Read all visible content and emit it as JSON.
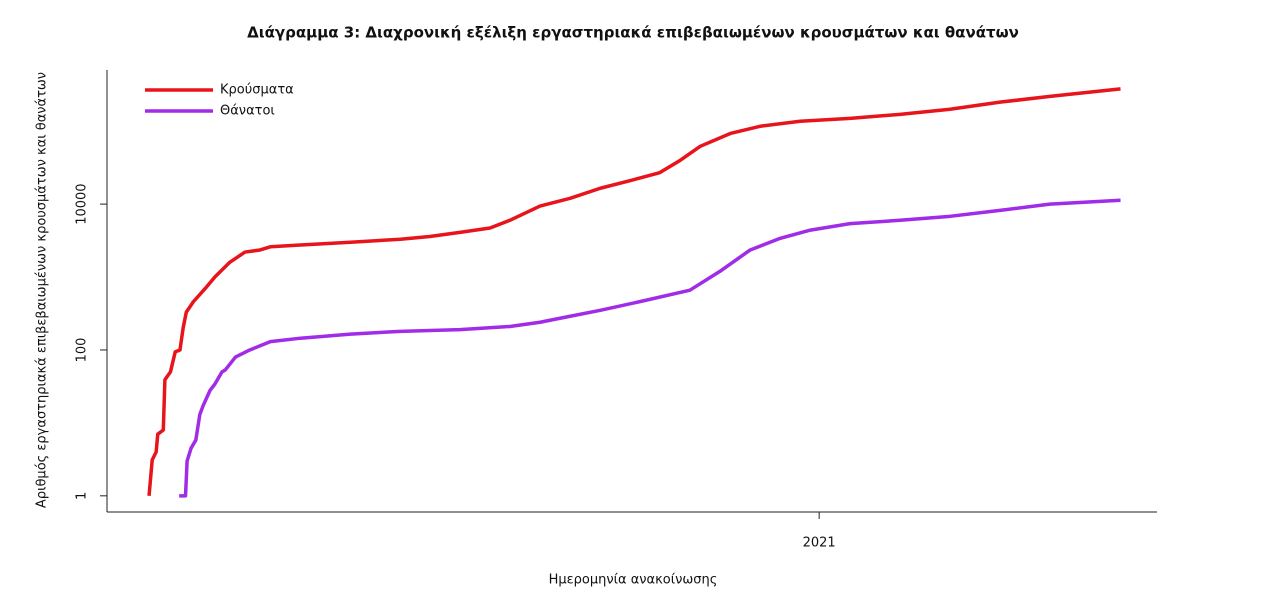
{
  "chart_data": {
    "type": "line",
    "title": "Διάγραμμα 3: Διαχρονική εξέλιξη εργαστηριακά επιβεβαιωμένων κρουσμάτων και θανάτων",
    "x_label": "Ημερομηνία ανακοίνωσης",
    "y_label": "Αριθμός εργαστηριακά επιβεβαιωμένων κρουσμάτων και θανάτων",
    "log_y": true,
    "legend": "topleft",
    "xlim": [
      2020.102,
      2021.426
    ],
    "xticks": [
      2021
    ],
    "ylim": [
      0.6,
      690000
    ],
    "yticks": [
      1,
      100,
      10000
    ],
    "series": [
      {
        "name": "Κρούσματα",
        "color": "#e8141c",
        "x": [
          2020.155,
          2020.159,
          2020.164,
          2020.166,
          2020.173,
          2020.175,
          2020.182,
          2020.188,
          2020.194,
          2020.198,
          2020.202,
          2020.211,
          2020.226,
          2020.238,
          2020.257,
          2020.276,
          2020.295,
          2020.308,
          2020.346,
          2020.409,
          2020.472,
          2020.509,
          2020.547,
          2020.585,
          2020.61,
          2020.648,
          2020.686,
          2020.724,
          2020.762,
          2020.799,
          2020.825,
          2020.85,
          2020.888,
          2020.926,
          2020.976,
          2021.039,
          2021.102,
          2021.165,
          2021.228,
          2021.291,
          2021.38
        ],
        "values": [
          1,
          3.1,
          4,
          7,
          8,
          39,
          50,
          94,
          100,
          200,
          330,
          460,
          700,
          1000,
          1600,
          2200,
          2350,
          2600,
          2750,
          3000,
          3300,
          3600,
          4100,
          4700,
          6000,
          9400,
          12000,
          16500,
          21000,
          27000,
          40000,
          62000,
          93000,
          117000,
          137000,
          150000,
          170000,
          200000,
          250000,
          300000,
          380000
        ]
      },
      {
        "name": "Θάνατοι",
        "color": "#a02ce8",
        "x": [
          2020.193,
          2020.201,
          2020.203,
          2020.208,
          2020.214,
          2020.219,
          2020.223,
          2020.232,
          2020.238,
          2020.247,
          2020.251,
          2020.264,
          2020.282,
          2020.308,
          2020.346,
          2020.409,
          2020.472,
          2020.547,
          2020.61,
          2020.648,
          2020.686,
          2020.724,
          2020.774,
          2020.837,
          2020.875,
          2020.913,
          2020.951,
          2020.989,
          2021.039,
          2021.102,
          2021.165,
          2021.228,
          2021.291,
          2021.38
        ],
        "values": [
          1,
          1,
          3,
          4.5,
          5.8,
          13,
          17,
          28,
          34,
          50,
          53,
          80,
          100,
          130,
          145,
          165,
          180,
          190,
          210,
          240,
          290,
          350,
          460,
          660,
          1200,
          2350,
          3400,
          4400,
          5400,
          6000,
          6800,
          8200,
          10000,
          11300
        ]
      }
    ]
  }
}
